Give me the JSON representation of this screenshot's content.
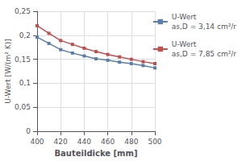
{
  "chart_data": {
    "type": "line",
    "x": [
      400,
      410,
      420,
      430,
      440,
      450,
      460,
      470,
      480,
      490,
      500
    ],
    "series": [
      {
        "name": "U-Wert\nas,D = 3,14 cm²/r",
        "color": "#5b7fa6",
        "marker": "square",
        "values": [
          0.196,
          0.183,
          0.17,
          0.163,
          0.157,
          0.151,
          0.148,
          0.144,
          0.141,
          0.137,
          0.132
        ]
      },
      {
        "name": "U-Wert\nas,D = 7,85 cm²/r",
        "color": "#c0504d",
        "marker": "square",
        "values": [
          0.22,
          0.204,
          0.189,
          0.181,
          0.173,
          0.166,
          0.16,
          0.155,
          0.15,
          0.145,
          0.141
        ]
      }
    ],
    "xlabel": "Bauteildicke [mm]",
    "ylabel": "U-Wert [W/(m² K)]",
    "xlim": [
      400,
      500
    ],
    "ylim": [
      0,
      0.25
    ],
    "xticks": [
      400,
      420,
      440,
      460,
      480,
      500
    ],
    "yticks": [
      0,
      {
        "value": 0.05,
        "label": "0,05"
      },
      {
        "value": 0.1,
        "label": "0,1"
      },
      {
        "value": 0.15,
        "label": "0,15"
      },
      {
        "value": 0.2,
        "label": "0,2"
      },
      {
        "value": 0.25,
        "label": "0,25"
      }
    ],
    "grid": true,
    "legend": "right"
  }
}
